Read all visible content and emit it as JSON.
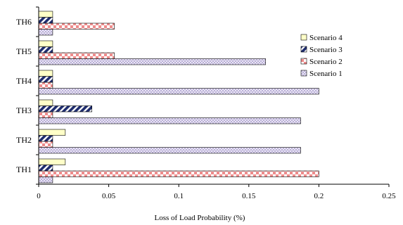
{
  "chart_data": {
    "type": "bar",
    "orientation": "horizontal",
    "categories": [
      "TH1",
      "TH2",
      "TH3",
      "TH4",
      "TH5",
      "TH6"
    ],
    "series": [
      {
        "name": "Scenario 1",
        "values": [
          0.01,
          0.187,
          0.187,
          0.2,
          0.162,
          0.01
        ],
        "color": "#d8d0ec",
        "pattern": "dots"
      },
      {
        "name": "Scenario 2",
        "values": [
          0.2,
          0.01,
          0.01,
          0.01,
          0.054,
          0.054
        ],
        "color": "#f2a0a0",
        "pattern": "checker"
      },
      {
        "name": "Scenario 3",
        "values": [
          0.01,
          0.01,
          0.038,
          0.01,
          0.01,
          0.01
        ],
        "color": "#1f2d6e",
        "pattern": "diagonal"
      },
      {
        "name": "Scenario 4",
        "values": [
          0.019,
          0.019,
          0.01,
          0.01,
          0.01,
          0.01
        ],
        "color": "#ffffc8",
        "pattern": "solid"
      }
    ],
    "xlabel": "Loss of Load Probability (%)",
    "ylabel": "",
    "xlim": [
      0,
      0.25
    ],
    "xticks": [
      "0",
      "0.05",
      "0.1",
      "0.15",
      "0.2",
      "0.25"
    ],
    "legend": {
      "position": "right",
      "order": [
        "Scenario 4",
        "Scenario 3",
        "Scenario 2",
        "Scenario 1"
      ]
    },
    "grid": false
  }
}
